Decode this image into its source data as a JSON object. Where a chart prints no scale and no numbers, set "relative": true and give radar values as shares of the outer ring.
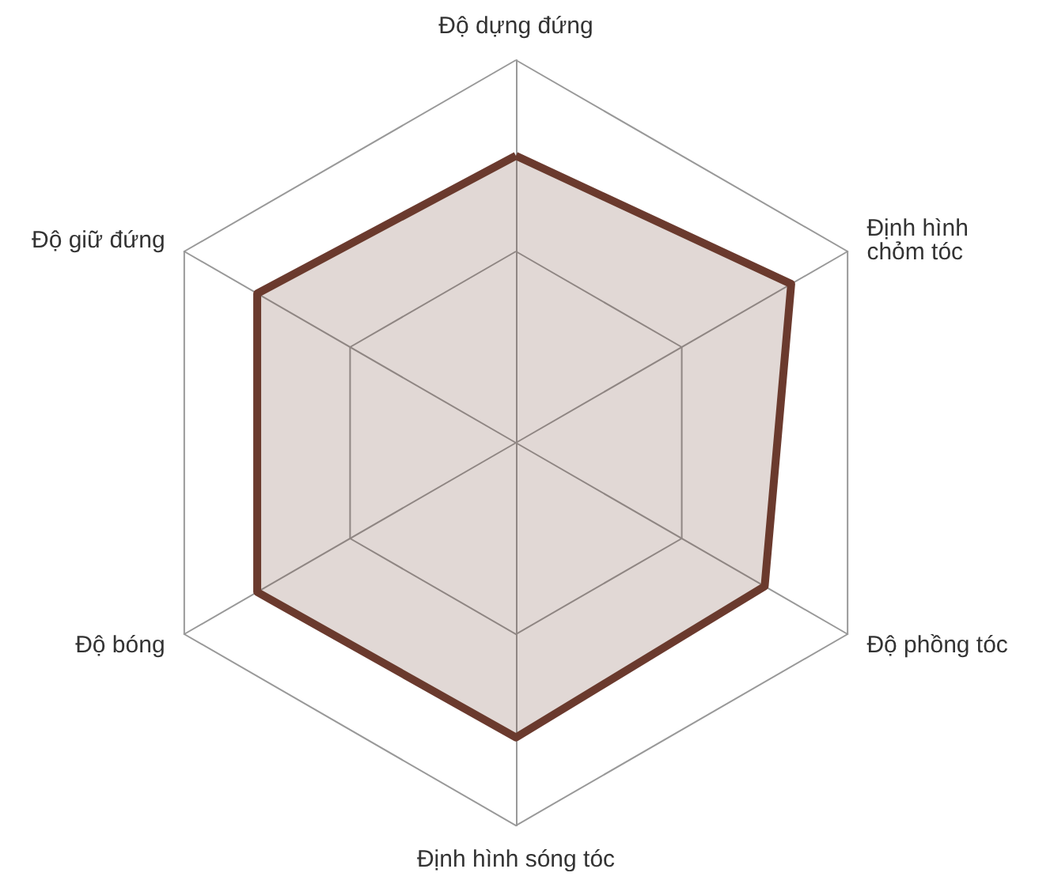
{
  "chart_data": {
    "type": "radar",
    "relative": true,
    "categories": [
      "Độ dựng đứng",
      "Định hình\nchỏm tóc",
      "Độ phồng tóc",
      "Định hình sóng tóc",
      "Độ bóng",
      "Độ giữ đứng"
    ],
    "series": [
      {
        "color": "#6b3a2e",
        "values": [
          0.75,
          0.83,
          0.75,
          0.77,
          0.78,
          0.78
        ]
      }
    ],
    "marker": "none"
  }
}
